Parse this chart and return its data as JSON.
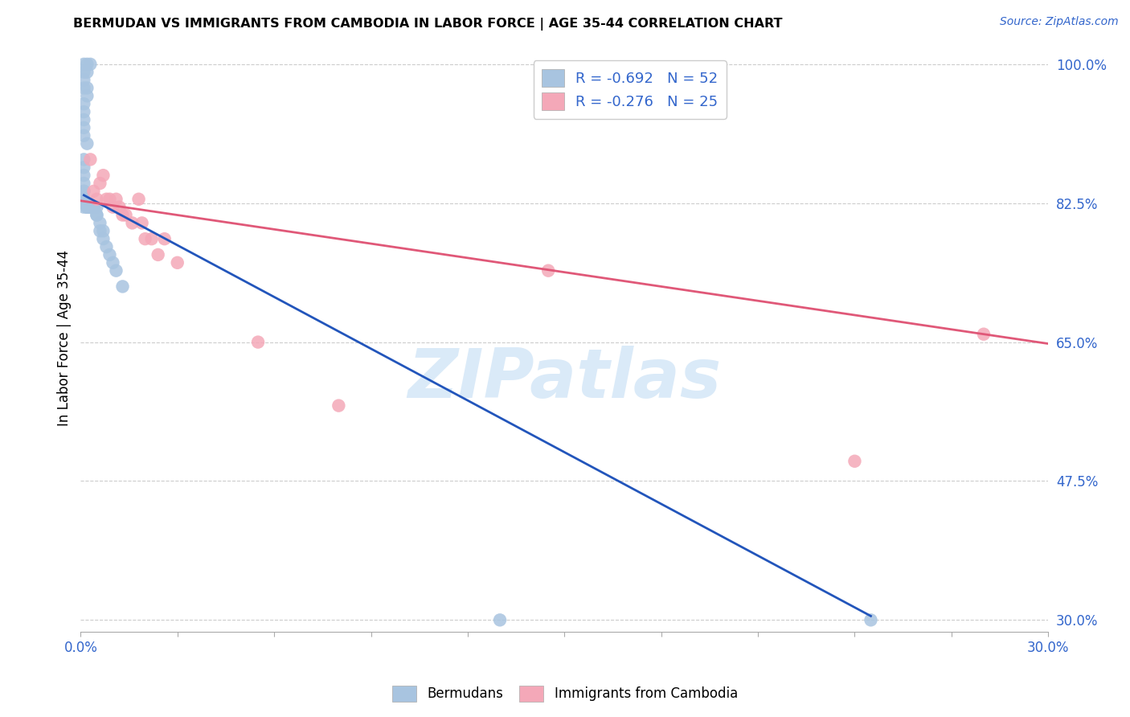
{
  "title": "BERMUDAN VS IMMIGRANTS FROM CAMBODIA IN LABOR FORCE | AGE 35-44 CORRELATION CHART",
  "source": "Source: ZipAtlas.com",
  "ylabel": "In Labor Force | Age 35-44",
  "xlim": [
    0.0,
    0.3
  ],
  "ylim": [
    0.285,
    1.025
  ],
  "xticks": [
    0.0,
    0.03,
    0.06,
    0.09,
    0.12,
    0.15,
    0.18,
    0.21,
    0.24,
    0.27,
    0.3
  ],
  "xtick_labels": [
    "0.0%",
    "",
    "",
    "",
    "",
    "",
    "",
    "",
    "",
    "",
    "30.0%"
  ],
  "yticks": [
    0.3,
    0.475,
    0.65,
    0.825,
    1.0
  ],
  "ytick_labels": [
    "30.0%",
    "47.5%",
    "65.0%",
    "82.5%",
    "100.0%"
  ],
  "blue_label": "Bermudans",
  "pink_label": "Immigrants from Cambodia",
  "R_blue": -0.692,
  "N_blue": 52,
  "R_pink": -0.276,
  "N_pink": 25,
  "blue_color": "#a8c4e0",
  "pink_color": "#f4a8b8",
  "blue_line_color": "#2255bb",
  "pink_line_color": "#e05878",
  "watermark_text": "ZIPatlas",
  "watermark_color": "#daeaf8",
  "blue_x": [
    0.001,
    0.002,
    0.003,
    0.001,
    0.002,
    0.001,
    0.002,
    0.001,
    0.002,
    0.001,
    0.001,
    0.001,
    0.001,
    0.001,
    0.002,
    0.001,
    0.001,
    0.001,
    0.001,
    0.001,
    0.001,
    0.001,
    0.001,
    0.001,
    0.001,
    0.001,
    0.002,
    0.002,
    0.002,
    0.003,
    0.003,
    0.003,
    0.003,
    0.003,
    0.004,
    0.004,
    0.004,
    0.004,
    0.005,
    0.005,
    0.005,
    0.006,
    0.006,
    0.007,
    0.007,
    0.008,
    0.009,
    0.01,
    0.011,
    0.013,
    0.13,
    0.245
  ],
  "blue_y": [
    1.0,
    1.0,
    1.0,
    0.99,
    0.99,
    0.98,
    0.97,
    0.97,
    0.96,
    0.95,
    0.94,
    0.93,
    0.92,
    0.91,
    0.9,
    0.88,
    0.87,
    0.86,
    0.85,
    0.84,
    0.84,
    0.83,
    0.83,
    0.83,
    0.83,
    0.82,
    0.82,
    0.82,
    0.82,
    0.82,
    0.82,
    0.82,
    0.82,
    0.82,
    0.82,
    0.82,
    0.82,
    0.82,
    0.82,
    0.81,
    0.81,
    0.8,
    0.79,
    0.79,
    0.78,
    0.77,
    0.76,
    0.75,
    0.74,
    0.72,
    0.3,
    0.3
  ],
  "pink_x": [
    0.003,
    0.004,
    0.005,
    0.006,
    0.007,
    0.008,
    0.009,
    0.01,
    0.011,
    0.012,
    0.013,
    0.014,
    0.016,
    0.018,
    0.019,
    0.02,
    0.022,
    0.024,
    0.026,
    0.03,
    0.055,
    0.08,
    0.145,
    0.24,
    0.28
  ],
  "pink_y": [
    0.88,
    0.84,
    0.83,
    0.85,
    0.86,
    0.83,
    0.83,
    0.82,
    0.83,
    0.82,
    0.81,
    0.81,
    0.8,
    0.83,
    0.8,
    0.78,
    0.78,
    0.76,
    0.78,
    0.75,
    0.65,
    0.57,
    0.74,
    0.5,
    0.66
  ],
  "blue_line_x": [
    0.001,
    0.245
  ],
  "blue_line_y": [
    0.835,
    0.305
  ],
  "pink_line_x": [
    0.0,
    0.3
  ],
  "pink_line_y": [
    0.828,
    0.648
  ]
}
